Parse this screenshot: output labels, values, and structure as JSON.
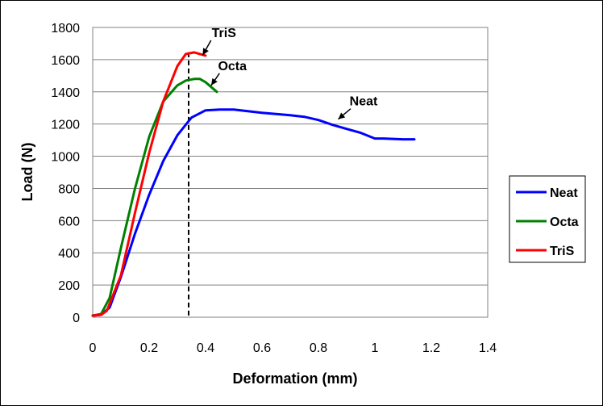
{
  "chart_data": {
    "type": "line",
    "title": "",
    "xlabel": "Deformation (mm)",
    "ylabel": "Load (N)",
    "xlim": [
      0,
      1.4
    ],
    "ylim": [
      0,
      1800
    ],
    "xticks": [
      0,
      0.2,
      0.4,
      0.6,
      0.8,
      1,
      1.2,
      1.4
    ],
    "xtick_labels": [
      "0",
      "0.2",
      "0.4",
      "0.6",
      "0.8",
      "1",
      "1.2",
      "1.4"
    ],
    "yticks": [
      0,
      200,
      400,
      600,
      800,
      1000,
      1200,
      1400,
      1600,
      1800
    ],
    "ytick_labels": [
      "0",
      "200",
      "400",
      "600",
      "800",
      "1000",
      "1200",
      "1400",
      "1600",
      "1800"
    ],
    "grid": "horizontal",
    "legend_position": "right",
    "series": [
      {
        "name": "Neat",
        "color": "#0000ff",
        "x": [
          0,
          0.03,
          0.06,
          0.1,
          0.15,
          0.2,
          0.25,
          0.3,
          0.35,
          0.4,
          0.45,
          0.5,
          0.6,
          0.7,
          0.75,
          0.8,
          0.85,
          0.9,
          0.95,
          1.0,
          1.03,
          1.1,
          1.14
        ],
        "y": [
          10,
          15,
          60,
          250,
          520,
          760,
          970,
          1130,
          1240,
          1285,
          1290,
          1290,
          1270,
          1255,
          1245,
          1225,
          1195,
          1170,
          1145,
          1110,
          1110,
          1105,
          1105
        ]
      },
      {
        "name": "Octa",
        "color": "#008000",
        "x": [
          0,
          0.03,
          0.06,
          0.1,
          0.15,
          0.2,
          0.25,
          0.3,
          0.33,
          0.36,
          0.38,
          0.4,
          0.42,
          0.44
        ],
        "y": [
          10,
          20,
          120,
          430,
          800,
          1120,
          1340,
          1440,
          1470,
          1480,
          1480,
          1460,
          1430,
          1400
        ]
      },
      {
        "name": "TriS",
        "color": "#ff0000",
        "x": [
          0,
          0.03,
          0.05,
          0.1,
          0.15,
          0.2,
          0.25,
          0.3,
          0.33,
          0.36,
          0.38,
          0.4
        ],
        "y": [
          10,
          15,
          40,
          260,
          650,
          1020,
          1340,
          1560,
          1635,
          1645,
          1635,
          1625
        ]
      }
    ],
    "reference_line": {
      "x": 0.34,
      "style": "dashed"
    },
    "annotations": [
      {
        "text": "TriS",
        "target": [
          0.39,
          1628
        ],
        "label_at": [
          0.465,
          1740
        ]
      },
      {
        "text": "Octa",
        "target": [
          0.42,
          1440
        ],
        "label_at": [
          0.495,
          1535
        ]
      },
      {
        "text": "Neat",
        "target": [
          0.87,
          1230
        ],
        "label_at": [
          0.96,
          1315
        ]
      }
    ]
  }
}
